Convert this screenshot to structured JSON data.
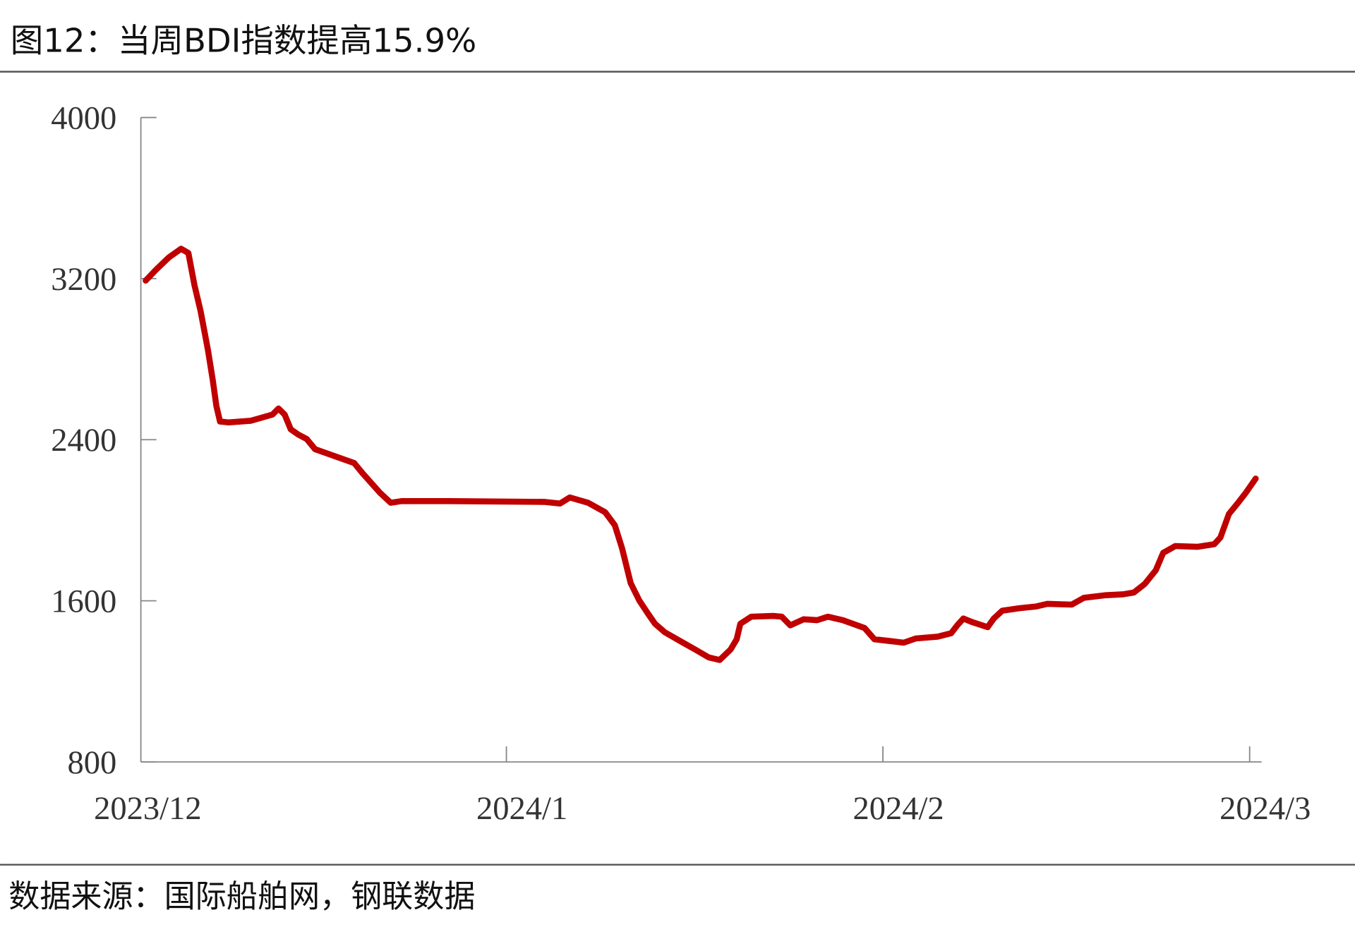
{
  "title": "图12：当周BDI指数提高15.9%",
  "source": "数据来源：国际船舶网，钢联数据",
  "colors": {
    "line": "#C00000",
    "axis": "#888888",
    "rule": "#555555"
  },
  "chart_data": {
    "type": "line",
    "title": "图12：当周BDI指数提高15.9%",
    "xlabel": "",
    "ylabel": "",
    "x_unit": "days since 2023/12/01 (approx.)",
    "ylim": [
      800,
      4000
    ],
    "xlim": [
      0,
      92
    ],
    "y_ticks": [
      800,
      1600,
      2400,
      3200,
      4000
    ],
    "x_ticks": [
      {
        "label": "2023/12",
        "day": 0
      },
      {
        "label": "2024/1",
        "day": 30
      },
      {
        "label": "2024/2",
        "day": 60.9
      },
      {
        "label": "2024/3",
        "day": 91
      }
    ],
    "grid": false,
    "legend": "none",
    "series": [
      {
        "name": "BDI",
        "x": [
          0.4,
          1.2,
          2.3,
          3.3,
          3.9,
          4.4,
          4.9,
          5.5,
          5.9,
          6.2,
          6.5,
          7.2,
          9.0,
          10.8,
          11.3,
          11.8,
          12.3,
          12.9,
          13.6,
          14.3,
          15.7,
          17.5,
          18.2,
          19.6,
          20.5,
          21.4,
          25.3,
          33.1,
          34.4,
          35.2,
          36.7,
          38.1,
          38.9,
          39.5,
          40.2,
          40.9,
          41.6,
          42.2,
          43.0,
          44.5,
          45.5,
          46.6,
          47.5,
          48.4,
          48.9,
          49.2,
          50.1,
          51.9,
          52.6,
          53.3,
          54.4,
          55.5,
          56.4,
          57.6,
          59.4,
          60.2,
          61.5,
          62.6,
          63.6,
          65.4,
          66.5,
          67.0,
          67.5,
          68.2,
          69.5,
          70.0,
          70.7,
          72.1,
          73.5,
          74.4,
          76.4,
          77.4,
          79.2,
          80.6,
          81.5,
          82.4,
          83.3,
          83.9,
          84.9,
          86.7,
          88.1,
          88.6,
          89.3,
          90.0,
          90.7,
          91.5
        ],
        "values": [
          3190,
          3241,
          3305,
          3348,
          3327,
          3168,
          3039,
          2846,
          2696,
          2567,
          2490,
          2486,
          2494,
          2525,
          2555,
          2525,
          2452,
          2426,
          2404,
          2353,
          2323,
          2284,
          2233,
          2138,
          2087,
          2095,
          2095,
          2091,
          2083,
          2113,
          2087,
          2040,
          1975,
          1860,
          1688,
          1602,
          1538,
          1486,
          1444,
          1392,
          1358,
          1319,
          1306,
          1358,
          1409,
          1486,
          1521,
          1525,
          1521,
          1478,
          1508,
          1504,
          1521,
          1504,
          1465,
          1409,
          1400,
          1392,
          1413,
          1422,
          1439,
          1478,
          1512,
          1495,
          1469,
          1512,
          1551,
          1563,
          1572,
          1585,
          1581,
          1615,
          1628,
          1632,
          1641,
          1684,
          1752,
          1838,
          1872,
          1868,
          1881,
          1915,
          2031,
          2083,
          2138,
          2207
        ]
      }
    ]
  }
}
